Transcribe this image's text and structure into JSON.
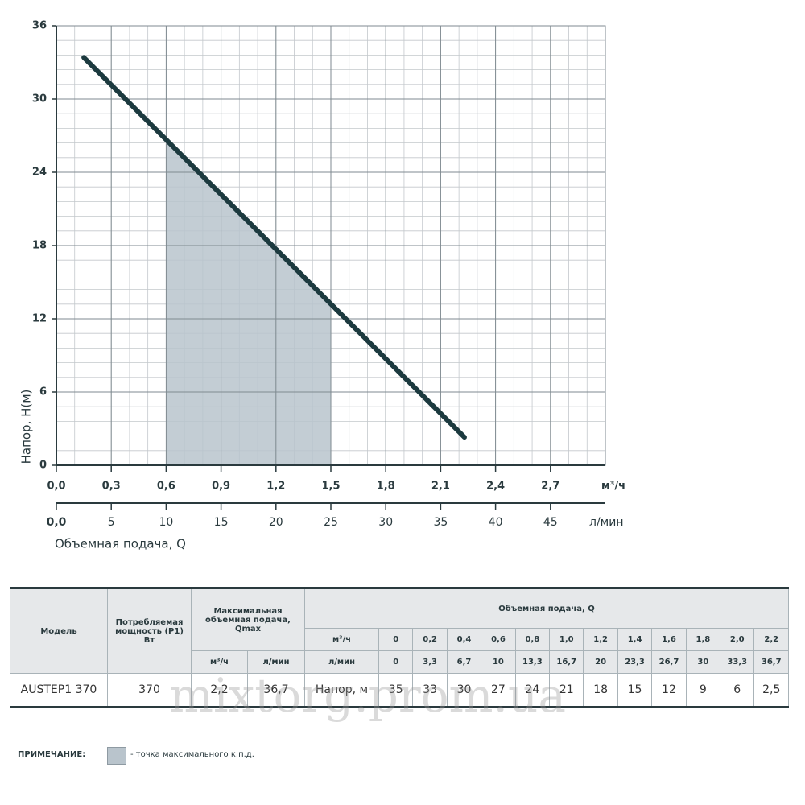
{
  "chart_data": {
    "type": "line",
    "y_label": "Напор, Н(м)",
    "x_label": "Объемная подача, Q",
    "x_unit": "м³/ч",
    "x2_unit": "л/мин",
    "xlim": [
      0,
      3.0
    ],
    "xticks": [
      {
        "value": 0,
        "label": "0,0"
      },
      {
        "value": 0.3,
        "label": "0,3"
      },
      {
        "value": 0.6,
        "label": "0,6"
      },
      {
        "value": 0.9,
        "label": "0,9"
      },
      {
        "value": 1.2,
        "label": "1,2"
      },
      {
        "value": 1.5,
        "label": "1,5"
      },
      {
        "value": 1.8,
        "label": "1,8"
      },
      {
        "value": 2.1,
        "label": "2,1"
      },
      {
        "value": 2.4,
        "label": "2,4"
      },
      {
        "value": 2.7,
        "label": "2,7"
      }
    ],
    "x2lim": [
      0,
      50
    ],
    "x2ticks": [
      {
        "value": 0,
        "label": "0,0"
      },
      5,
      10,
      15,
      20,
      25,
      30,
      35,
      40,
      45
    ],
    "ylim": [
      0,
      36
    ],
    "yticks": [
      0,
      6,
      12,
      18,
      24,
      30,
      36
    ],
    "grid": true,
    "series": [
      {
        "color": "#1c3a3f",
        "x": [
          0.15,
          2.23
        ],
        "values": [
          33.4,
          2.3
        ]
      }
    ],
    "band": {
      "color": "#b9c4cc",
      "x": [
        0.6,
        1.5
      ]
    }
  },
  "table": {
    "header": {
      "model": "Модель",
      "power": "Потребляемая мощность (P1)",
      "power_unit": "Вт",
      "qmax": "Максимальная объемная подача, Qmax",
      "qmax_units": [
        "м³/ч",
        "л/мин"
      ],
      "flow": "Объемная подача, Q"
    },
    "flow_rows": [
      [
        "м³/ч",
        "0",
        "0,2",
        "0,4",
        "0,6",
        "0,8",
        "1,0",
        "1,2",
        "1,4",
        "1,6",
        "1,8",
        "2,0",
        "2,2"
      ],
      [
        "л/мин",
        "0",
        "3,3",
        "6,7",
        "10",
        "13,3",
        "16,7",
        "20",
        "23,3",
        "26,7",
        "30",
        "33,3",
        "36,7"
      ]
    ],
    "row": {
      "model": "AUSTEP1 370",
      "power": "370",
      "qmax": [
        "2,2",
        "36,7"
      ],
      "head": [
        "Напор, м",
        "35",
        "33",
        "30",
        "27",
        "24",
        "21",
        "18",
        "15",
        "12",
        "9",
        "6",
        "2,5"
      ]
    }
  },
  "watermark": "mixtorg.prom.ua",
  "note": {
    "label": "ПРИМЕЧАНИЕ:",
    "text": "- точка максимального к.п.д."
  }
}
